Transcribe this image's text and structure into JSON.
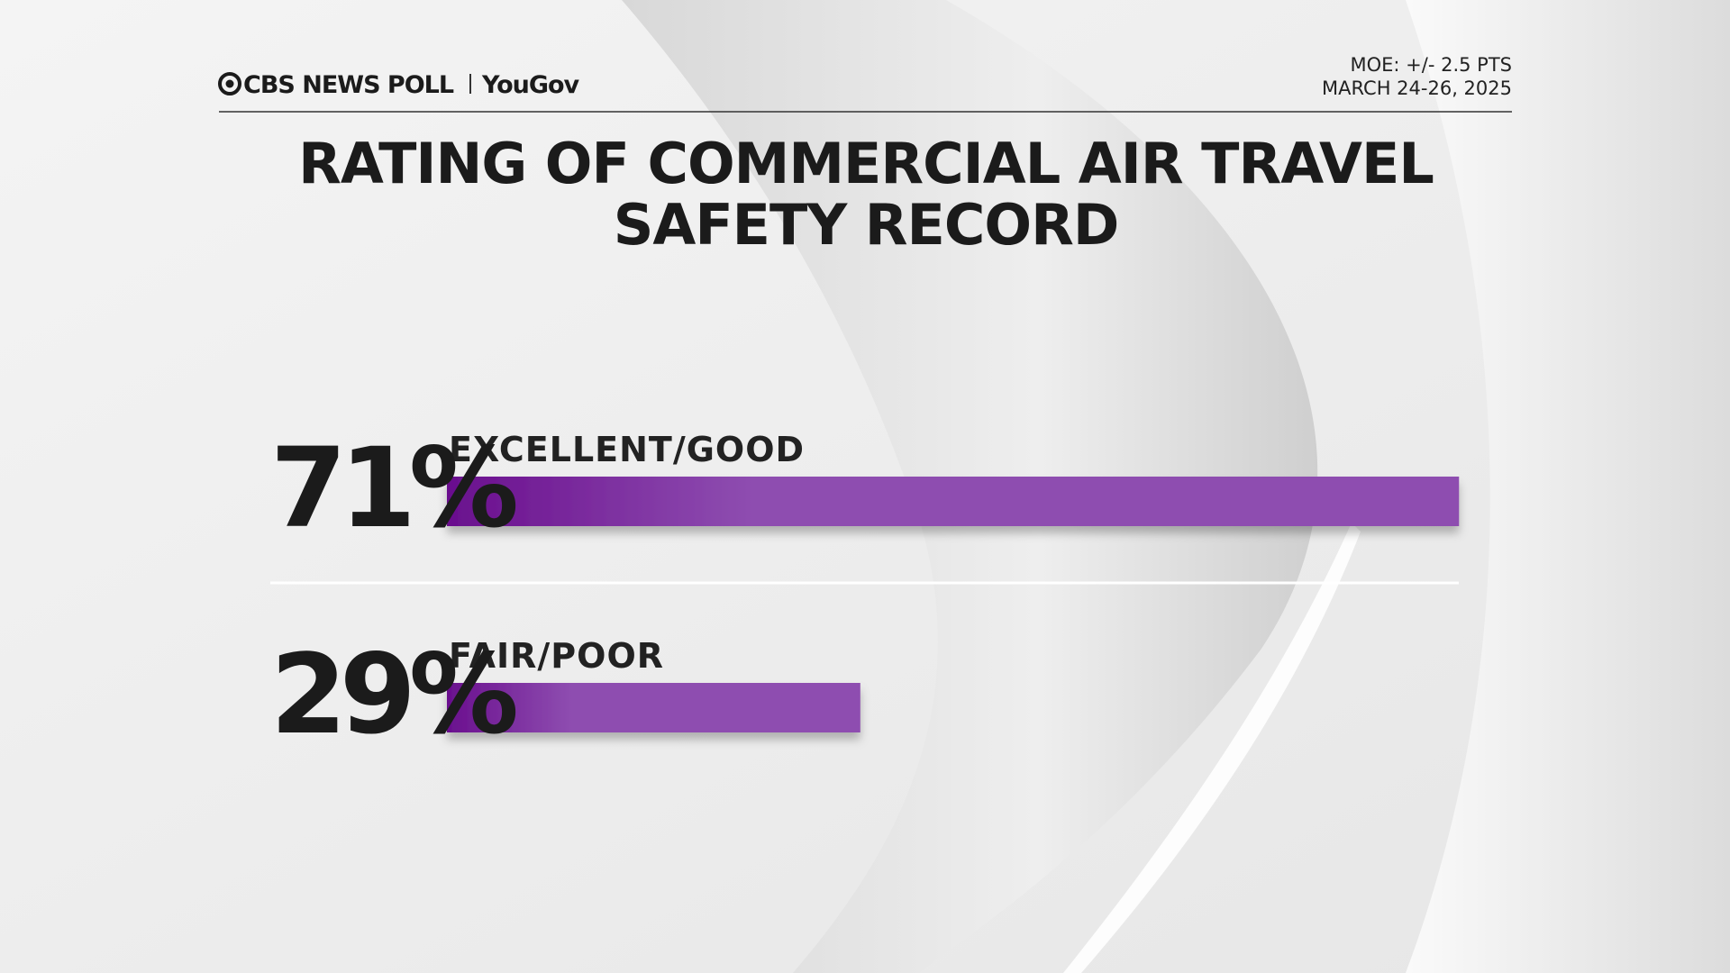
{
  "chart_data": {
    "type": "bar",
    "orientation": "horizontal",
    "brand": "CBS NEWS POLL",
    "partner": "YouGov",
    "notes": [
      "MOE: +/- 2.5 PTS",
      "MARCH 24-26, 2025"
    ],
    "title": [
      "RATING OF COMMERCIAL AIR TRAVEL",
      "SAFETY RECORD"
    ],
    "categories": [
      "EXCELLENT/GOOD",
      "FAIR/POOR"
    ],
    "values": [
      71,
      29
    ],
    "value_labels": [
      "71%",
      "29%"
    ],
    "color": "#8e4db0"
  }
}
